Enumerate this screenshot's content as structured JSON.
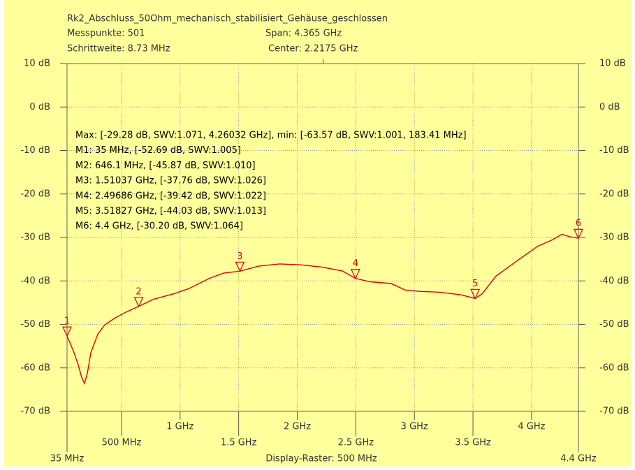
{
  "chart_data": {
    "type": "line",
    "title": "Rk2_Abschluss_50Ohm_mechanisch_stabilisiert_Gehäuse_geschlossen",
    "header": [
      "Messpunkte:  501",
      "Span: 4.365 GHz",
      "Schrittweite: 8.73 MHz",
      "Center: 2.2175 GHz"
    ],
    "footer": "Display-Raster: 500 MHz",
    "annotations": [
      "Max: [-29.28 dB, SWV:1.071, 4.26032 GHz], min: [-63.57 dB, SWV:1.001, 183.41 MHz]",
      "M1: 35 MHz, [-52.69 dB, SWV:1.005]",
      "M2: 646.1 MHz, [-45.87 dB, SWV:1.010]",
      "M3: 1.51037 GHz, [-37.76 dB, SWV:1.026]",
      "M4: 2.49686 GHz, [-39.42 dB, SWV:1.022]",
      "M5: 3.51827 GHz, [-44.03 dB, SWV:1.013]",
      "M6: 4.4 GHz, [-30.20 dB, SWV:1.064]"
    ],
    "x": [
      35,
      89,
      130,
      160,
      183.41,
      208,
      238,
      298,
      357,
      446,
      536,
      646.1,
      774,
      953,
      1072,
      1251,
      1371,
      1510.37,
      1669,
      1848,
      2027,
      2206,
      2384,
      2496.86,
      2623,
      2802,
      2921,
      3040,
      3219,
      3398,
      3518.27,
      3577,
      3696,
      3875,
      4054,
      4173,
      4260.32,
      4323,
      4400
    ],
    "values": [
      -52.69,
      -56.1,
      -59.3,
      -62.2,
      -63.57,
      -61.3,
      -56.5,
      -52.2,
      -50.1,
      -48.5,
      -47.2,
      -45.87,
      -44.2,
      -42.9,
      -41.8,
      -39.4,
      -38.2,
      -37.76,
      -36.6,
      -36.1,
      -36.3,
      -36.8,
      -37.7,
      -39.42,
      -40.2,
      -40.6,
      -42.1,
      -42.4,
      -42.6,
      -43.2,
      -44.03,
      -43.0,
      -38.9,
      -35.4,
      -32.0,
      -30.6,
      -29.28,
      -29.8,
      -30.2
    ],
    "color": "#e60000",
    "markers": [
      {
        "label": "1",
        "x": 35,
        "y": -52.69
      },
      {
        "label": "2",
        "x": 646.1,
        "y": -45.87
      },
      {
        "label": "3",
        "x": 1510.37,
        "y": -37.76
      },
      {
        "label": "4",
        "x": 2496.86,
        "y": -39.42
      },
      {
        "label": "5",
        "x": 3518.27,
        "y": -44.03
      },
      {
        "label": "6",
        "x": 4400,
        "y": -30.2
      }
    ],
    "xlim": [
      35,
      4400
    ],
    "ylim": [
      -70,
      10
    ],
    "xticks": [
      {
        "value": 35,
        "label": "35 MHz"
      },
      {
        "value": 500,
        "label": "500 MHz"
      },
      {
        "value": 1000,
        "label": "1 GHz"
      },
      {
        "value": 1500,
        "label": "1.5 GHz"
      },
      {
        "value": 2000,
        "label": "2 GHz"
      },
      {
        "value": 2500,
        "label": "2.5 GHz"
      },
      {
        "value": 3000,
        "label": "3 GHz"
      },
      {
        "value": 3500,
        "label": "3.5 GHz"
      },
      {
        "value": 4000,
        "label": "4 GHz"
      },
      {
        "value": 4400,
        "label": "4.4 GHz"
      }
    ],
    "yticks": [
      {
        "value": 10,
        "label": "10 dB"
      },
      {
        "value": 0,
        "label": "0 dB"
      },
      {
        "value": -10,
        "label": "-10 dB"
      },
      {
        "value": -20,
        "label": "-20 dB"
      },
      {
        "value": -30,
        "label": "-30 dB"
      },
      {
        "value": -40,
        "label": "-40 dB"
      },
      {
        "value": -50,
        "label": "-50 dB"
      },
      {
        "value": -60,
        "label": "-60 dB"
      },
      {
        "value": -70,
        "label": "-70 dB"
      }
    ],
    "grid": true
  }
}
